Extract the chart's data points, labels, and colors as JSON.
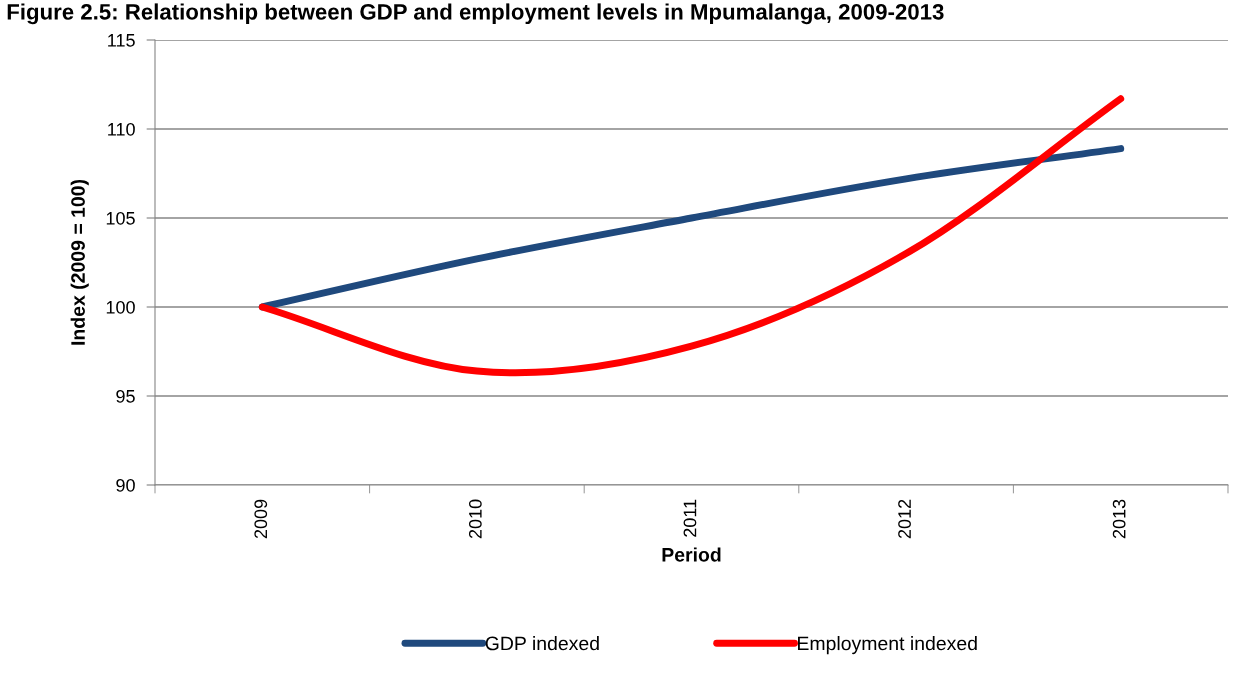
{
  "chart_data": {
    "type": "line",
    "title": "Figure 2.5: Relationship between GDP and employment levels in Mpumalanga, 2009-2013",
    "xlabel": "Period",
    "ylabel": "Index (2009 = 100)",
    "categories": [
      "2009",
      "2010",
      "2011",
      "2012",
      "2013"
    ],
    "series": [
      {
        "name": "GDP indexed",
        "color": "#1f497d",
        "values": [
          100,
          102.7,
          105.0,
          107.2,
          108.9
        ]
      },
      {
        "name": "Employment indexed",
        "color": "#ff0000",
        "values": [
          100,
          96.4,
          97.8,
          103.0,
          111.7
        ]
      }
    ],
    "ylim": [
      90,
      115
    ],
    "yticks": [
      90,
      95,
      100,
      105,
      110,
      115
    ],
    "grid": "y",
    "legend": "bottom",
    "marker": "none",
    "line_style": "solid"
  }
}
